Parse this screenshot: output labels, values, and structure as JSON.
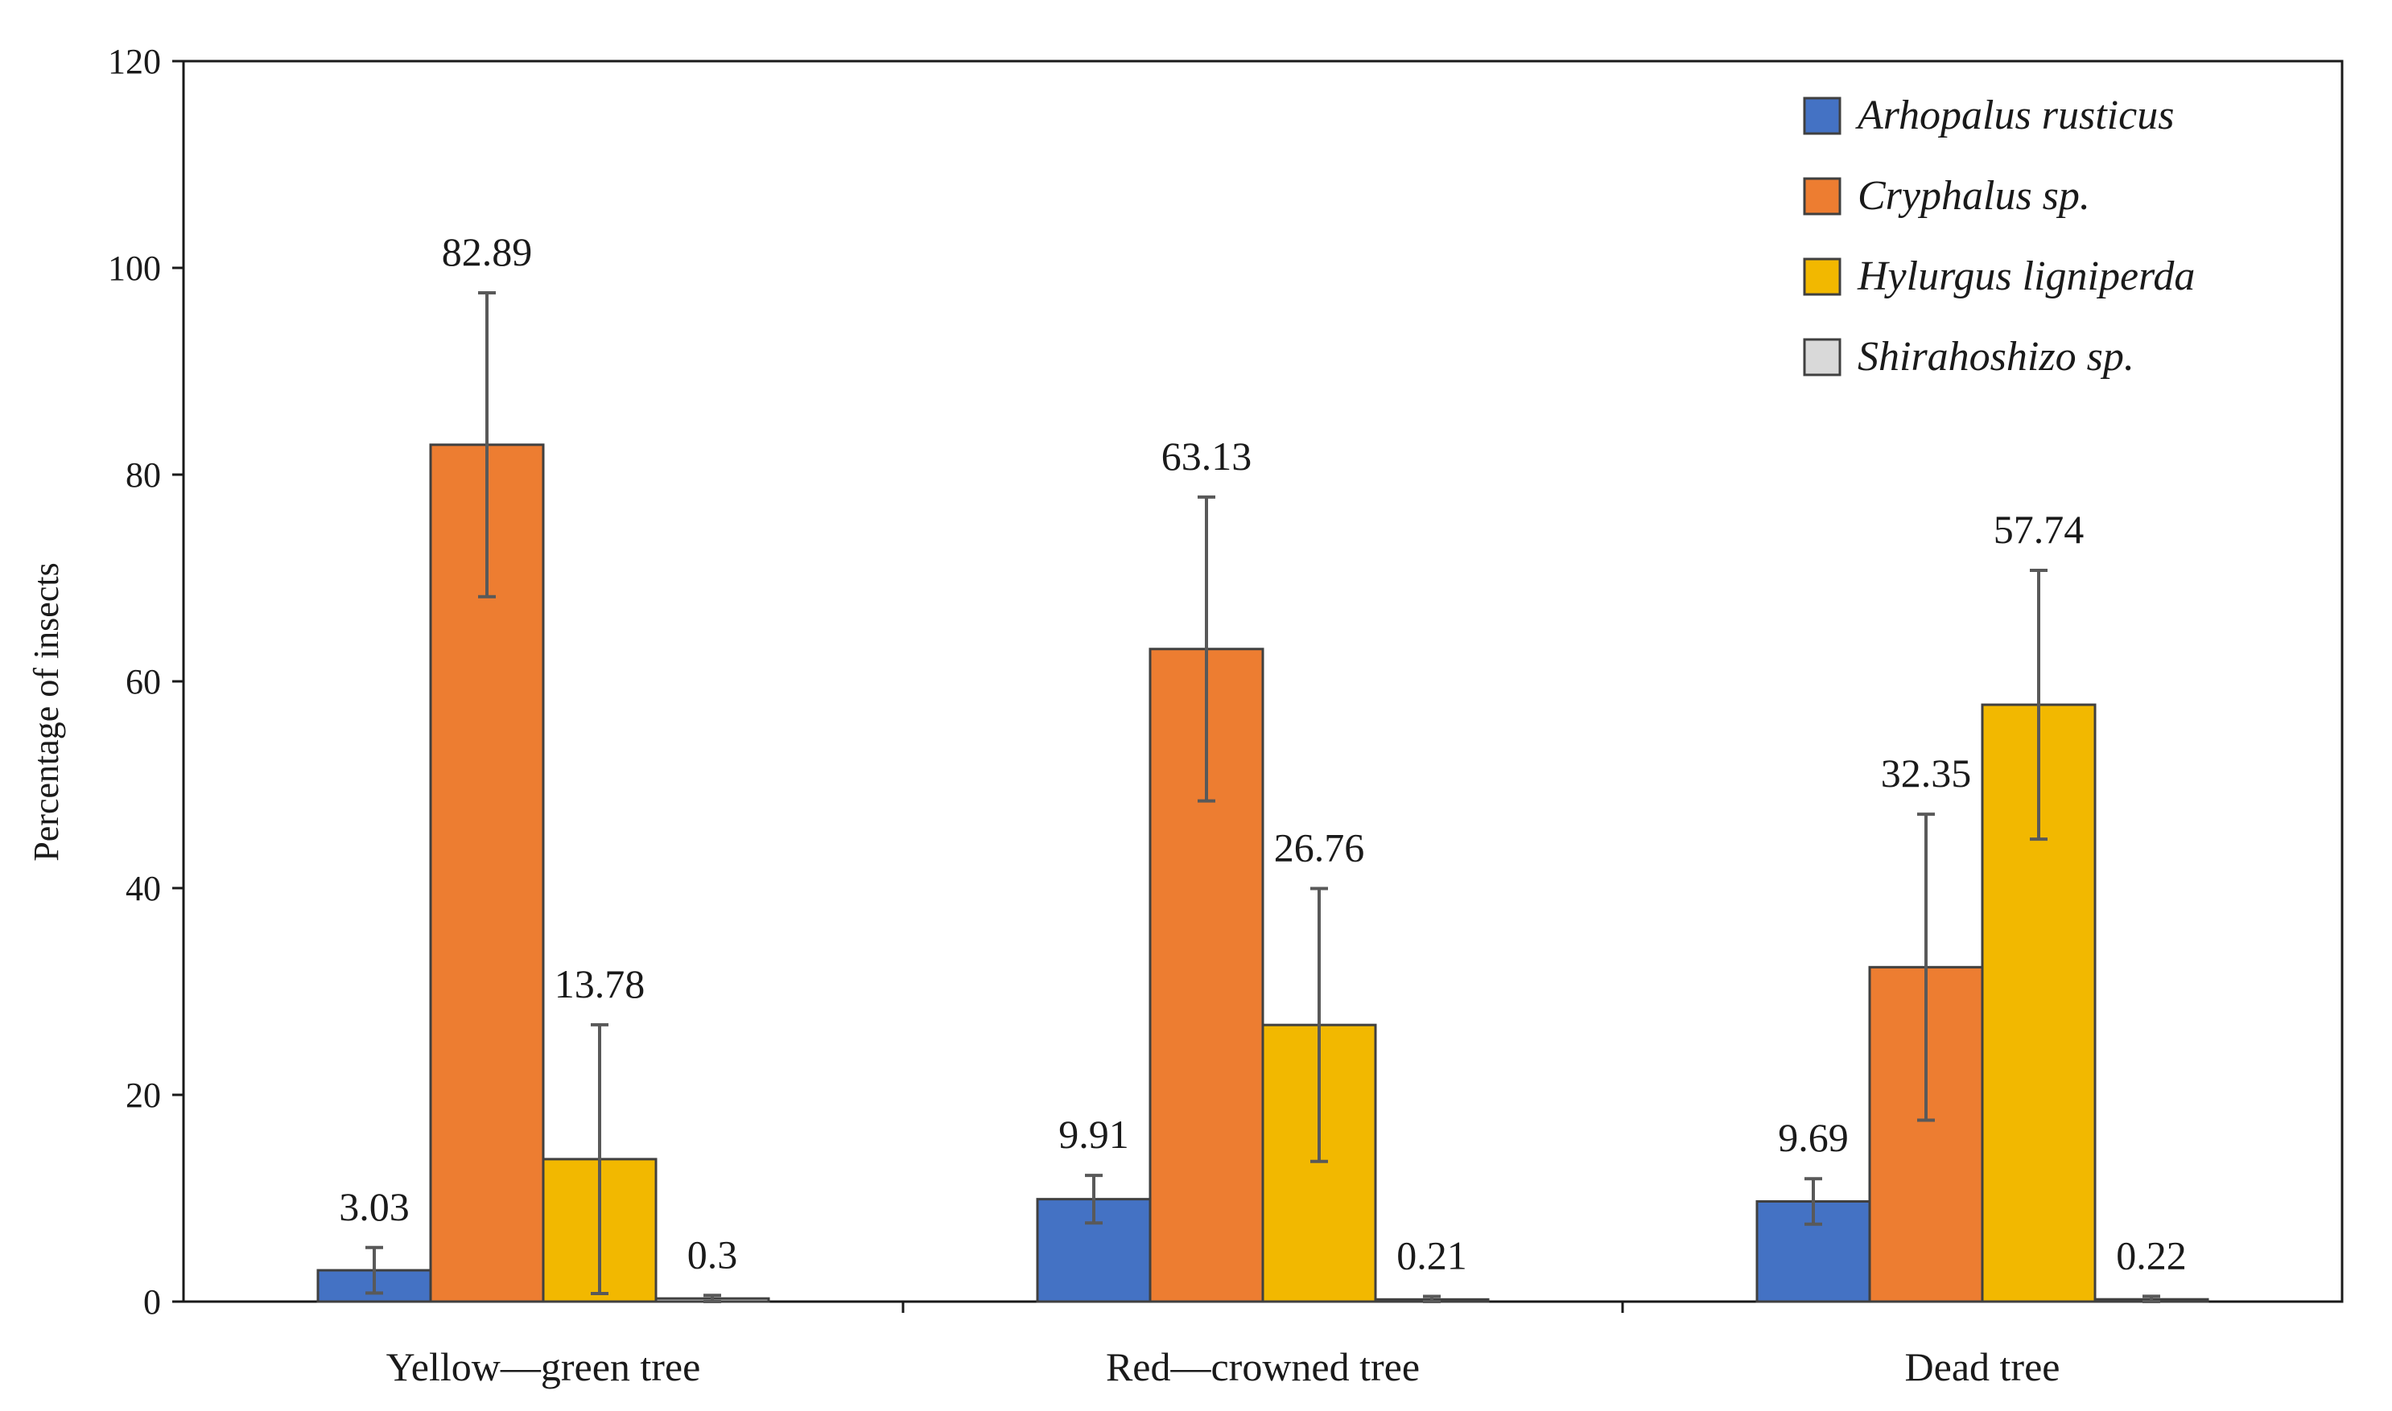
{
  "chart_data": {
    "type": "bar",
    "title": "",
    "xlabel": "",
    "ylabel": "Percentage of  insects",
    "ylim": [
      0,
      120
    ],
    "yticks": [
      "0",
      "20",
      "40",
      "60",
      "80",
      "100",
      "120"
    ],
    "grid": false,
    "legend_position": "top-right",
    "categories": [
      "Yellow—green tree",
      "Red—crowned tree",
      "Dead tree"
    ],
    "series": [
      {
        "name": "Arhopalus rusticus",
        "color": "#4472c4",
        "values": [
          3.03,
          9.91,
          9.69
        ],
        "labels": [
          "3.03",
          "9.91",
          "9.69"
        ],
        "error": [
          2.2,
          2.3,
          2.2
        ]
      },
      {
        "name": "Cryphalus sp.",
        "color": "#ed7d31",
        "values": [
          82.89,
          63.13,
          32.35
        ],
        "labels": [
          "82.89",
          "63.13",
          "32.35"
        ],
        "error": [
          14.7,
          14.7,
          14.8
        ]
      },
      {
        "name": "Hylurgus ligniperda",
        "color": "#f2b800",
        "values": [
          13.78,
          26.76,
          57.74
        ],
        "labels": [
          "13.78",
          "26.76",
          "57.74"
        ],
        "error": [
          13.0,
          13.2,
          13.0
        ]
      },
      {
        "name": "Shirahoshizo sp.",
        "color": "#d9d9d9",
        "values": [
          0.3,
          0.21,
          0.22
        ],
        "labels": [
          "0.3",
          "0.21",
          "0.22"
        ],
        "error": [
          0.3,
          0.3,
          0.3
        ]
      }
    ]
  }
}
